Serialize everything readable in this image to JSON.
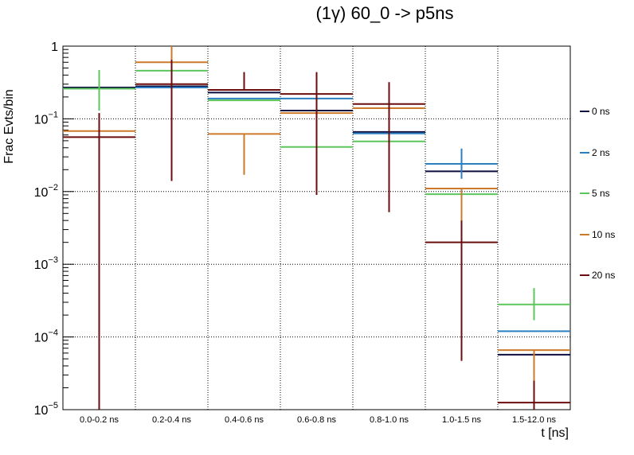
{
  "chart_data": {
    "type": "line",
    "title": "(1γ) 60_0 -> p5ns",
    "xlabel": "t [ns]",
    "ylabel": "Frac Evts/bin",
    "yscale": "log",
    "ylim": [
      1e-05,
      1
    ],
    "grid": true,
    "legend_position": "right",
    "categories": [
      "0.0-0.2 ns",
      "0.2-0.4 ns",
      "0.4-0.6 ns",
      "0.6-0.8 ns",
      "0.8-1.0 ns",
      "1.0-1.5 ns",
      "1.5-12.0 ns"
    ],
    "yticks": [
      {
        "value": 1,
        "label": "1"
      },
      {
        "value": 0.1,
        "label": "10",
        "exp": "−1"
      },
      {
        "value": 0.01,
        "label": "10",
        "exp": "−2"
      },
      {
        "value": 0.001,
        "label": "10",
        "exp": "−3"
      },
      {
        "value": 0.0001,
        "label": "10",
        "exp": "−4"
      },
      {
        "value": 1e-05,
        "label": "10",
        "exp": "−5"
      }
    ],
    "series": [
      {
        "name": "0 ns",
        "color": "#0d0d3f",
        "values": [
          0.27,
          0.28,
          0.23,
          0.13,
          0.066,
          0.019,
          5.7e-05
        ],
        "err_low": [
          null,
          null,
          null,
          null,
          null,
          null,
          null
        ],
        "err_high": [
          null,
          null,
          null,
          null,
          null,
          null,
          null
        ]
      },
      {
        "name": "2 ns",
        "color": "#2a7fc0",
        "values": [
          0.26,
          0.27,
          0.19,
          0.19,
          0.063,
          0.024,
          0.00012
        ],
        "err_low": [
          null,
          null,
          null,
          null,
          null,
          0.015,
          null
        ],
        "err_high": [
          null,
          null,
          null,
          null,
          null,
          0.039,
          null
        ]
      },
      {
        "name": "5 ns",
        "color": "#5cc55c",
        "values": [
          0.26,
          0.46,
          0.18,
          0.041,
          0.049,
          0.0092,
          0.00028
        ],
        "err_low": [
          0.13,
          null,
          null,
          null,
          null,
          null,
          0.00017
        ],
        "err_high": [
          0.47,
          null,
          null,
          null,
          null,
          null,
          0.00047
        ]
      },
      {
        "name": "10 ns",
        "color": "#cc7a2a",
        "values": [
          0.068,
          0.6,
          0.062,
          0.12,
          0.14,
          0.011,
          6.6e-05
        ],
        "err_low": [
          null,
          0.35,
          0.017,
          null,
          null,
          0.004,
          2.4e-05
        ],
        "err_high": [
          null,
          1.0,
          null,
          null,
          null,
          null,
          null
        ]
      },
      {
        "name": "20 ns",
        "color": "#6b0d0d",
        "values": [
          0.056,
          0.3,
          0.25,
          0.22,
          0.16,
          0.002,
          1.25e-05
        ],
        "err_low": [
          1e-05,
          0.014,
          null,
          0.009,
          0.0052,
          4.7e-05,
          1e-05
        ],
        "err_high": [
          0.12,
          0.65,
          0.44,
          0.44,
          0.32,
          0.004,
          2.5e-05
        ]
      }
    ]
  }
}
